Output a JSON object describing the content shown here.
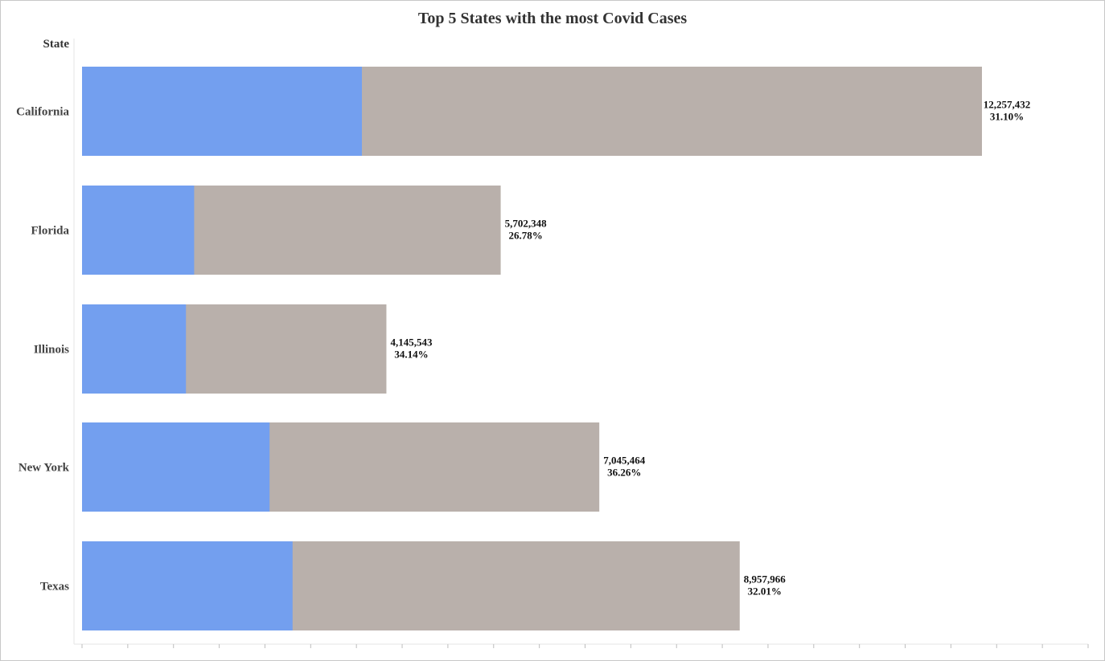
{
  "chart_data": {
    "type": "bar",
    "orientation": "horizontal",
    "stacked": true,
    "title": "Top 5 States with the most Covid Cases",
    "row_header": "State",
    "categories": [
      "California",
      "Florida",
      "Illinois",
      "New York",
      "Texas"
    ],
    "totals": [
      12257432,
      5702348,
      4145543,
      7045464,
      8957966
    ],
    "total_labels": [
      "12,257,432",
      "5,702,348",
      "4,145,543",
      "7,045,464",
      "8,957,966"
    ],
    "percent_labels": [
      "31.10%",
      "26.78%",
      "34.14%",
      "36.26%",
      "32.01%"
    ],
    "percents": [
      31.1,
      26.78,
      34.14,
      36.26,
      32.01
    ],
    "series_colors": {
      "share": "#739fef",
      "remainder": "#b9b0ab"
    },
    "xlim": [
      0,
      13500000
    ],
    "grid": false,
    "legend": "none"
  }
}
